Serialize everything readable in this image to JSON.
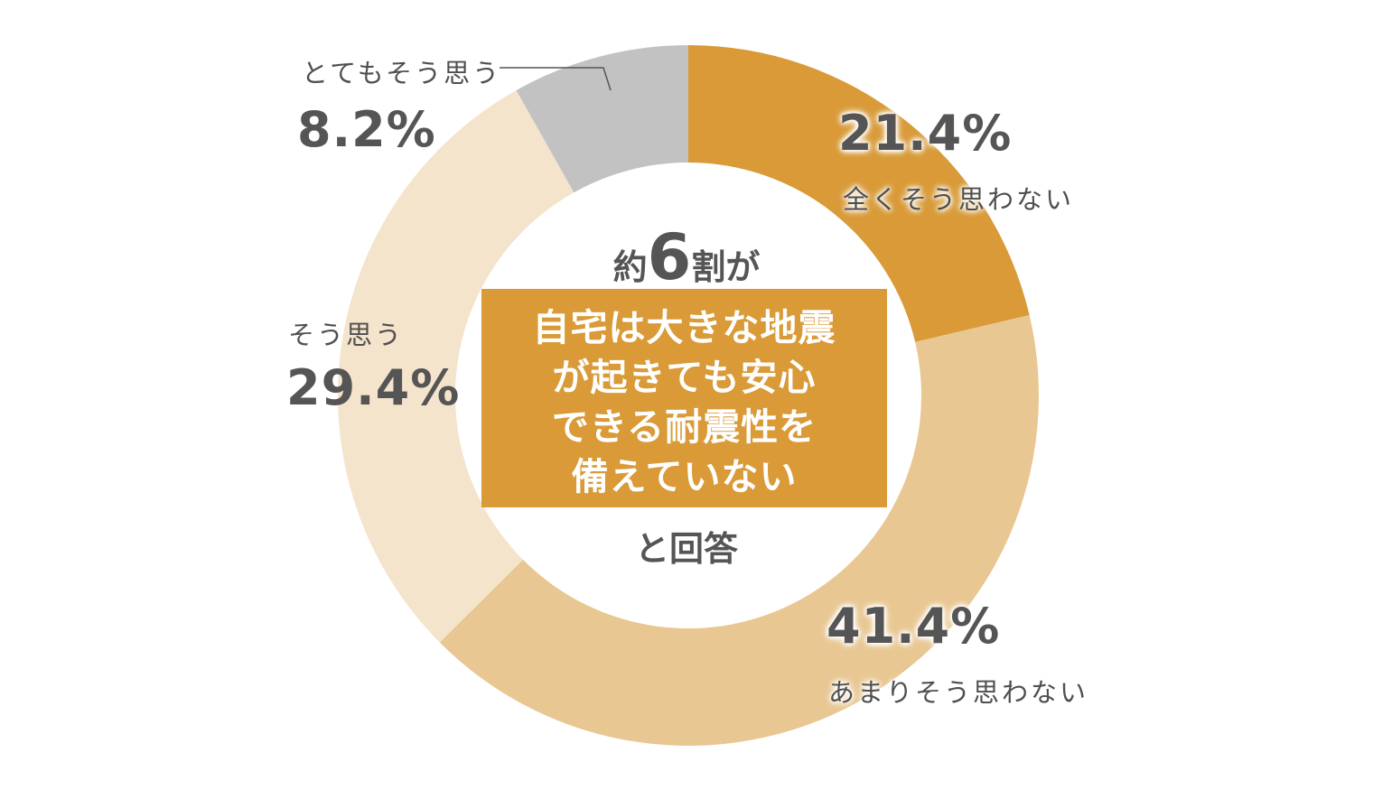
{
  "chart_data": {
    "type": "pie",
    "variant": "donut",
    "title": "",
    "categories": [
      "全くそう思わない",
      "あまりそう思わない",
      "そう思う",
      "とてもそう思う"
    ],
    "values": [
      21.4,
      41.4,
      29.4,
      8.2
    ],
    "unit": "%",
    "colors": [
      "#d99a37",
      "#e9c792",
      "#f5e4cc",
      "#c2c2c2"
    ],
    "start_angle_deg": 0,
    "direction": "clockwise",
    "legend": "none",
    "annotations": {
      "center_line1_prefix": "約",
      "center_line1_number": "6",
      "center_line1_suffix": "割が",
      "center_box_lines": [
        "自宅は大きな地震",
        "が起きても安心",
        "できる耐震性を",
        "備えていない"
      ],
      "center_line3": "と回答"
    }
  },
  "labels": [
    {
      "category": "全くそう思わない",
      "percent": "21.4%"
    },
    {
      "category": "あまりそう思わない",
      "percent": "41.4%"
    },
    {
      "category": "そう思う",
      "percent": "29.4%"
    },
    {
      "category": "とてもそう思う",
      "percent": "8.2%"
    }
  ],
  "center": {
    "prefix": "約",
    "number": "6",
    "suffix": "割が",
    "box_lines": [
      "自宅は大きな地震",
      "が起きても安心",
      "できる耐震性を",
      "備えていない"
    ],
    "footer": "と回答"
  },
  "colors": {
    "accent": "#d99a37",
    "medium": "#e9c792",
    "light": "#f5e4cc",
    "gray": "#c2c2c2",
    "text": "#555555"
  }
}
